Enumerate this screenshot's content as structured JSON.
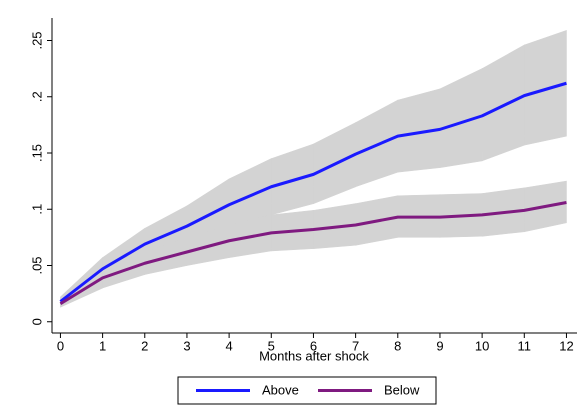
{
  "chart_data": {
    "type": "line",
    "x_label": "Months after shock",
    "x": [
      0,
      1,
      2,
      3,
      4,
      5,
      6,
      7,
      8,
      9,
      10,
      11,
      12
    ],
    "xlim": [
      -0.2,
      12.25
    ],
    "xticks": [
      0,
      1,
      2,
      3,
      4,
      5,
      6,
      7,
      8,
      9,
      10,
      11,
      12
    ],
    "ylim": [
      -0.01,
      0.27
    ],
    "yticks": [
      0,
      {
        "value": 0.05,
        "label": ".05"
      },
      {
        "value": 0.1,
        "label": ".1"
      },
      {
        "value": 0.15,
        "label": ".15"
      },
      {
        "value": 0.2,
        "label": ".2"
      },
      {
        "value": 0.25,
        "label": ".25"
      }
    ],
    "grid": false,
    "band_color": "#d3d3d3",
    "series": [
      {
        "name": "Above",
        "color": "#1a1aff",
        "values": [
          0.018,
          0.047,
          0.069,
          0.085,
          0.104,
          0.12,
          0.131,
          0.149,
          0.165,
          0.171,
          0.183,
          0.201,
          0.212
        ],
        "lower": [
          0.015,
          0.037,
          0.055,
          0.068,
          0.082,
          0.095,
          0.105,
          0.12,
          0.133,
          0.137,
          0.143,
          0.157,
          0.165
        ],
        "upper": [
          0.022,
          0.057,
          0.083,
          0.103,
          0.127,
          0.145,
          0.158,
          0.177,
          0.197,
          0.207,
          0.225,
          0.246,
          0.259
        ]
      },
      {
        "name": "Below",
        "color": "#7f1a80",
        "values": [
          0.016,
          0.039,
          0.052,
          0.062,
          0.072,
          0.079,
          0.082,
          0.086,
          0.093,
          0.093,
          0.095,
          0.099,
          0.106
        ],
        "lower": [
          0.013,
          0.03,
          0.042,
          0.05,
          0.057,
          0.063,
          0.065,
          0.068,
          0.075,
          0.075,
          0.076,
          0.08,
          0.088
        ],
        "upper": [
          0.019,
          0.048,
          0.062,
          0.075,
          0.086,
          0.095,
          0.099,
          0.105,
          0.112,
          0.113,
          0.114,
          0.119,
          0.125
        ]
      }
    ]
  }
}
